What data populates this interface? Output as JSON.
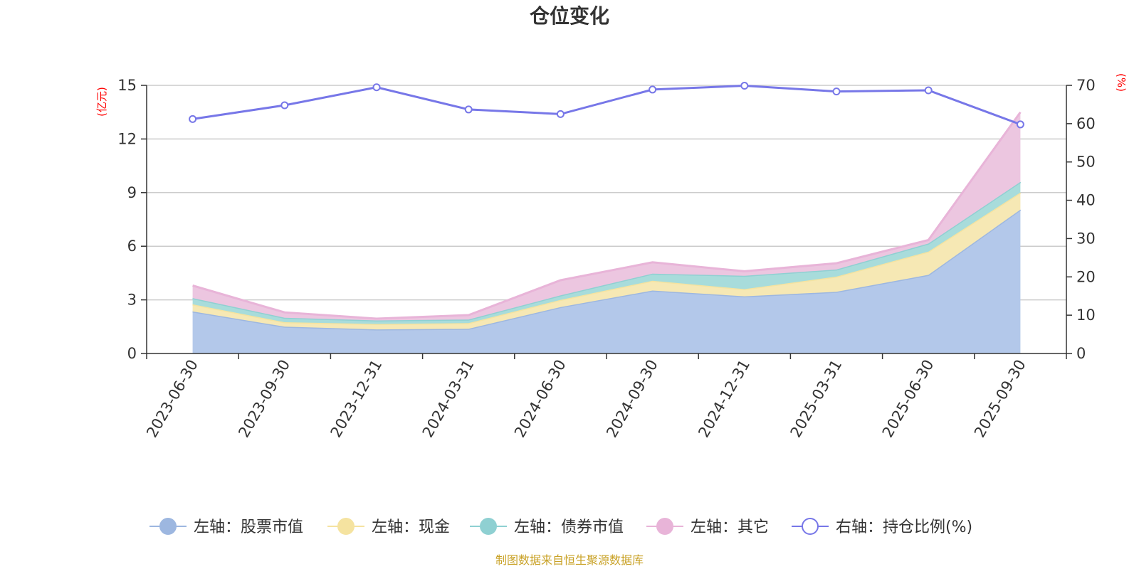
{
  "chart_data": {
    "type": "area",
    "title": "仓位变化",
    "left_axis_unit": "(亿元)",
    "right_axis_unit": "(%)",
    "categories": [
      "2023-06-30",
      "2023-09-30",
      "2023-12-31",
      "2024-03-31",
      "2024-06-30",
      "2024-09-30",
      "2024-12-31",
      "2025-03-31",
      "2025-06-30",
      "2025-09-30"
    ],
    "left_ylim": [
      0,
      15
    ],
    "left_ticks": [
      0,
      3,
      6,
      9,
      12,
      15
    ],
    "right_ylim": [
      0,
      70
    ],
    "right_ticks": [
      0,
      10,
      20,
      30,
      40,
      50,
      60,
      70
    ],
    "grid": true,
    "legend_position": "bottom",
    "stacked_series": [
      {
        "name": "左轴：股票市值",
        "color": "#9db7e0",
        "fill": "#b3c8ea",
        "values": [
          2.35,
          1.5,
          1.35,
          1.38,
          2.6,
          3.52,
          3.2,
          3.45,
          4.4,
          8.05
        ]
      },
      {
        "name": "左轴：现金",
        "color": "#f5e3a0",
        "fill": "#f6e8b4",
        "values": [
          0.4,
          0.25,
          0.3,
          0.32,
          0.4,
          0.55,
          0.4,
          0.85,
          1.3,
          0.95
        ]
      },
      {
        "name": "左轴：债券市值",
        "color": "#8fd0d2",
        "fill": "#a8dcdb",
        "values": [
          0.35,
          0.25,
          0.2,
          0.2,
          0.25,
          0.4,
          0.75,
          0.4,
          0.45,
          0.6
        ]
      },
      {
        "name": "左轴：其它",
        "color": "#e8b4d8",
        "fill": "#ecc6e0",
        "values": [
          0.7,
          0.3,
          0.1,
          0.25,
          0.85,
          0.63,
          0.25,
          0.35,
          0.2,
          3.9
        ]
      }
    ],
    "line_series": {
      "name": "右轴：持仓比例(%)",
      "color": "#7777e8",
      "values": [
        61.2,
        64.8,
        69.5,
        63.7,
        62.5,
        68.9,
        69.9,
        68.4,
        68.7,
        59.8
      ]
    },
    "source": "制图数据来自恒生聚源数据库"
  }
}
